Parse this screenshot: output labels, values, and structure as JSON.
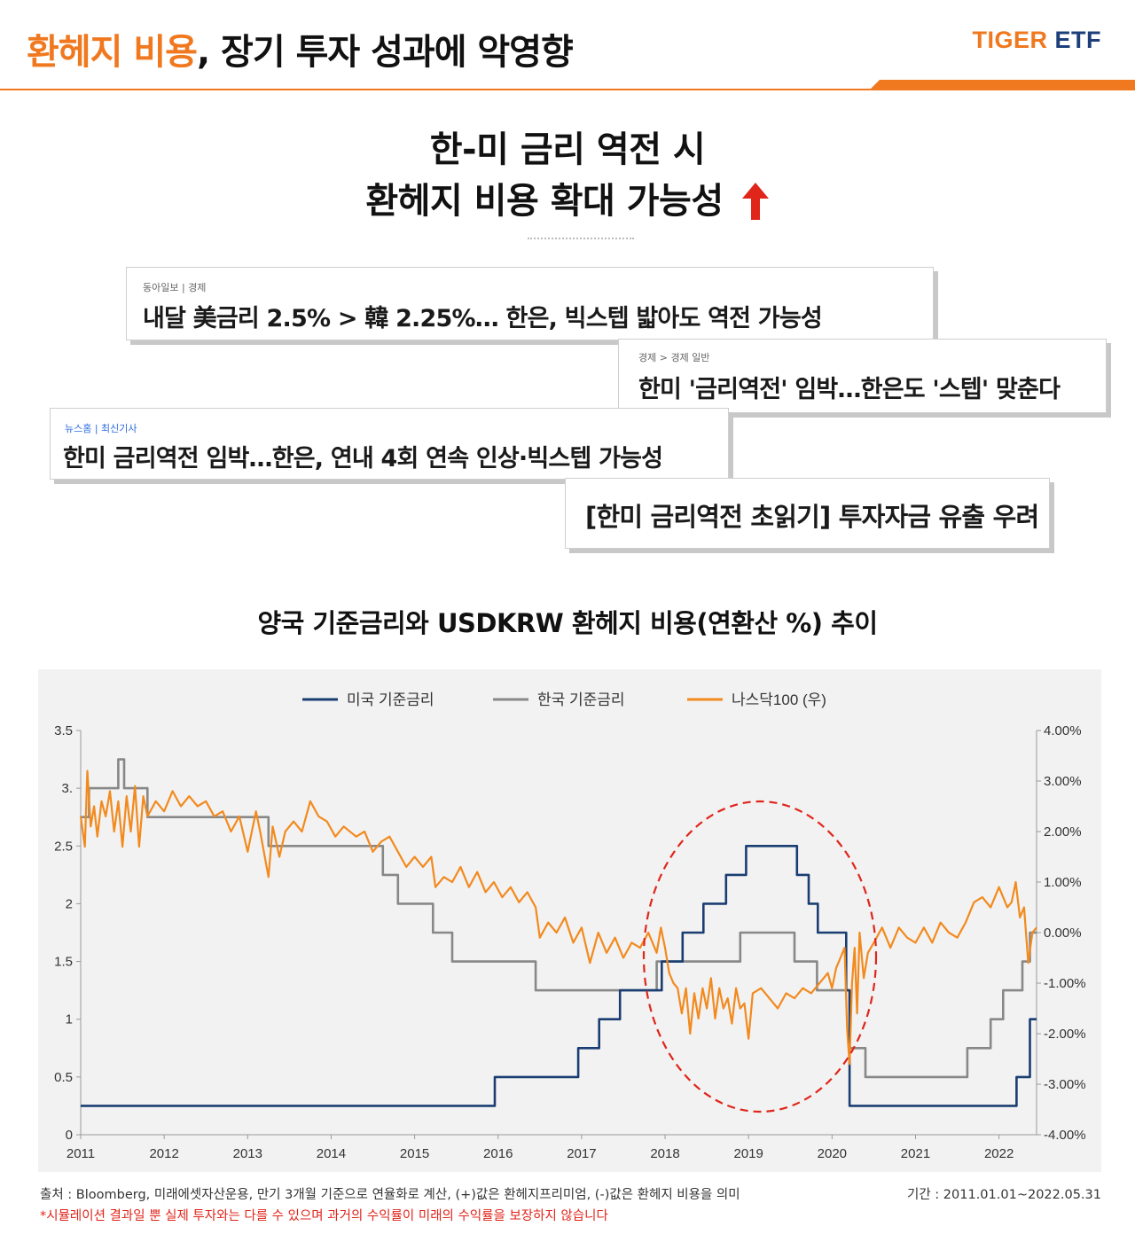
{
  "header": {
    "title_accent": "환헤지 비용",
    "title_rest": ", 장기 투자 성과에 악영향",
    "brand_part1": "TIGER",
    "brand_part2": " ETF",
    "accent_color": "#f0781e",
    "brand_color": "#1c3f7a"
  },
  "headline": {
    "line1": "한-미 금리 역전 시",
    "line2": "환헤지 비용 확대 가능성",
    "arrow_icon": "up-arrow-icon",
    "arrow_color": "#e0251b"
  },
  "news": [
    {
      "source": "동아일보 | 경제",
      "title": "내달 美금리 2.5% > 韓 2.25%… 한은, 빅스텝 밟아도 역전 가능성"
    },
    {
      "source": "경제 > 경제 일반",
      "title": "한미 '금리역전' 임박…한은도 '스텝' 맞춘다"
    },
    {
      "source": "뉴스홈 | 최신기사",
      "title": "한미 금리역전 임박…한은, 연내 4회 연속 인상·빅스텝 가능성"
    },
    {
      "source": "",
      "title": "[한미 금리역전 초읽기] 투자자금 유출 우려"
    }
  ],
  "chart_title": "양국 기준금리와 USDKRW 환헤지 비용(연환산 %) 추이",
  "chart_data": {
    "type": "line",
    "x_ticks": [
      "2011",
      "2012",
      "2013",
      "2014",
      "2015",
      "2016",
      "2017",
      "2018",
      "2019",
      "2020",
      "2021",
      "2022"
    ],
    "xlim": [
      2011.0,
      2022.45
    ],
    "y_left_ticks": [
      "0",
      "0.5",
      "1",
      "1.5",
      "2",
      "2.5",
      "3.",
      "3.5"
    ],
    "ylim_left": [
      0,
      3.5
    ],
    "y_right_ticks": [
      "-4.00%",
      "-3.00%",
      "-2.00%",
      "-1.00%",
      "0.00%",
      "1.00%",
      "2.00%",
      "3.00%",
      "4.00%"
    ],
    "ylim_right": [
      -4,
      4
    ],
    "legend_position": "top-center",
    "annotation": "red dashed ellipse around 2018-2020 rate inversion",
    "series": [
      {
        "name": "미국 기준금리",
        "axis": "left",
        "color": "#1a3e72",
        "step": true,
        "points": [
          [
            2011.0,
            0.25
          ],
          [
            2015.96,
            0.25
          ],
          [
            2015.96,
            0.5
          ],
          [
            2016.96,
            0.5
          ],
          [
            2016.96,
            0.75
          ],
          [
            2017.21,
            0.75
          ],
          [
            2017.21,
            1.0
          ],
          [
            2017.46,
            1.0
          ],
          [
            2017.46,
            1.25
          ],
          [
            2017.96,
            1.25
          ],
          [
            2017.96,
            1.5
          ],
          [
            2018.21,
            1.5
          ],
          [
            2018.21,
            1.75
          ],
          [
            2018.46,
            1.75
          ],
          [
            2018.46,
            2.0
          ],
          [
            2018.73,
            2.0
          ],
          [
            2018.73,
            2.25
          ],
          [
            2018.97,
            2.25
          ],
          [
            2018.97,
            2.5
          ],
          [
            2019.58,
            2.5
          ],
          [
            2019.58,
            2.25
          ],
          [
            2019.72,
            2.25
          ],
          [
            2019.72,
            2.0
          ],
          [
            2019.83,
            2.0
          ],
          [
            2019.83,
            1.75
          ],
          [
            2020.17,
            1.75
          ],
          [
            2020.17,
            1.25
          ],
          [
            2020.21,
            1.25
          ],
          [
            2020.21,
            0.25
          ],
          [
            2022.21,
            0.25
          ],
          [
            2022.21,
            0.5
          ],
          [
            2022.37,
            0.5
          ],
          [
            2022.37,
            1.0
          ],
          [
            2022.45,
            1.0
          ]
        ]
      },
      {
        "name": "한국 기준금리",
        "axis": "left",
        "color": "#888888",
        "step": true,
        "points": [
          [
            2011.0,
            2.75
          ],
          [
            2011.1,
            2.75
          ],
          [
            2011.1,
            3.0
          ],
          [
            2011.45,
            3.0
          ],
          [
            2011.45,
            3.25
          ],
          [
            2011.52,
            3.25
          ],
          [
            2011.52,
            3.0
          ],
          [
            2011.8,
            3.0
          ],
          [
            2011.8,
            2.75
          ],
          [
            2013.25,
            2.75
          ],
          [
            2013.25,
            2.5
          ],
          [
            2014.62,
            2.5
          ],
          [
            2014.62,
            2.25
          ],
          [
            2014.8,
            2.25
          ],
          [
            2014.8,
            2.0
          ],
          [
            2015.22,
            2.0
          ],
          [
            2015.22,
            1.75
          ],
          [
            2015.45,
            1.75
          ],
          [
            2015.45,
            1.5
          ],
          [
            2016.45,
            1.5
          ],
          [
            2016.45,
            1.25
          ],
          [
            2017.9,
            1.25
          ],
          [
            2017.9,
            1.5
          ],
          [
            2018.9,
            1.5
          ],
          [
            2018.9,
            1.75
          ],
          [
            2019.55,
            1.75
          ],
          [
            2019.55,
            1.5
          ],
          [
            2019.82,
            1.5
          ],
          [
            2019.82,
            1.25
          ],
          [
            2020.21,
            1.25
          ],
          [
            2020.21,
            0.75
          ],
          [
            2020.4,
            0.75
          ],
          [
            2020.4,
            0.5
          ],
          [
            2021.62,
            0.5
          ],
          [
            2021.62,
            0.75
          ],
          [
            2021.9,
            0.75
          ],
          [
            2021.9,
            1.0
          ],
          [
            2022.05,
            1.0
          ],
          [
            2022.05,
            1.25
          ],
          [
            2022.28,
            1.25
          ],
          [
            2022.28,
            1.5
          ],
          [
            2022.37,
            1.5
          ],
          [
            2022.37,
            1.75
          ],
          [
            2022.45,
            1.75
          ]
        ]
      },
      {
        "name": "나스닥100 (우)",
        "axis": "right",
        "color": "#f28a1e",
        "points": [
          [
            2011.0,
            2.3
          ],
          [
            2011.05,
            1.7
          ],
          [
            2011.08,
            3.2
          ],
          [
            2011.12,
            2.1
          ],
          [
            2011.16,
            2.5
          ],
          [
            2011.2,
            1.9
          ],
          [
            2011.25,
            2.6
          ],
          [
            2011.3,
            2.3
          ],
          [
            2011.35,
            2.8
          ],
          [
            2011.4,
            2.0
          ],
          [
            2011.45,
            2.6
          ],
          [
            2011.5,
            1.7
          ],
          [
            2011.55,
            2.7
          ],
          [
            2011.6,
            2.0
          ],
          [
            2011.65,
            2.9
          ],
          [
            2011.7,
            1.7
          ],
          [
            2011.75,
            2.7
          ],
          [
            2011.8,
            2.3
          ],
          [
            2011.9,
            2.6
          ],
          [
            2012.0,
            2.4
          ],
          [
            2012.1,
            2.8
          ],
          [
            2012.2,
            2.5
          ],
          [
            2012.3,
            2.7
          ],
          [
            2012.4,
            2.5
          ],
          [
            2012.5,
            2.6
          ],
          [
            2012.6,
            2.3
          ],
          [
            2012.7,
            2.4
          ],
          [
            2012.8,
            2.0
          ],
          [
            2012.9,
            2.3
          ],
          [
            2013.0,
            1.6
          ],
          [
            2013.1,
            2.4
          ],
          [
            2013.15,
            2.0
          ],
          [
            2013.25,
            1.1
          ],
          [
            2013.3,
            2.1
          ],
          [
            2013.38,
            1.5
          ],
          [
            2013.45,
            2.0
          ],
          [
            2013.55,
            2.2
          ],
          [
            2013.65,
            2.0
          ],
          [
            2013.75,
            2.6
          ],
          [
            2013.85,
            2.3
          ],
          [
            2013.95,
            2.2
          ],
          [
            2014.05,
            1.9
          ],
          [
            2014.15,
            2.1
          ],
          [
            2014.3,
            1.9
          ],
          [
            2014.4,
            2.0
          ],
          [
            2014.5,
            1.6
          ],
          [
            2014.6,
            1.8
          ],
          [
            2014.7,
            1.9
          ],
          [
            2014.8,
            1.6
          ],
          [
            2014.9,
            1.3
          ],
          [
            2015.0,
            1.5
          ],
          [
            2015.1,
            1.3
          ],
          [
            2015.2,
            1.5
          ],
          [
            2015.25,
            0.9
          ],
          [
            2015.35,
            1.1
          ],
          [
            2015.45,
            1.0
          ],
          [
            2015.55,
            1.3
          ],
          [
            2015.65,
            0.9
          ],
          [
            2015.75,
            1.2
          ],
          [
            2015.85,
            0.8
          ],
          [
            2015.95,
            1.0
          ],
          [
            2016.05,
            0.7
          ],
          [
            2016.15,
            0.9
          ],
          [
            2016.25,
            0.6
          ],
          [
            2016.35,
            0.8
          ],
          [
            2016.45,
            0.5
          ],
          [
            2016.5,
            -0.1
          ],
          [
            2016.6,
            0.2
          ],
          [
            2016.7,
            0.0
          ],
          [
            2016.8,
            0.3
          ],
          [
            2016.9,
            -0.2
          ],
          [
            2017.0,
            0.1
          ],
          [
            2017.1,
            -0.6
          ],
          [
            2017.2,
            0.0
          ],
          [
            2017.3,
            -0.4
          ],
          [
            2017.4,
            -0.1
          ],
          [
            2017.5,
            -0.5
          ],
          [
            2017.6,
            -0.2
          ],
          [
            2017.7,
            -0.3
          ],
          [
            2017.8,
            0.0
          ],
          [
            2017.9,
            -0.4
          ],
          [
            2017.95,
            0.1
          ],
          [
            2018.0,
            -0.3
          ],
          [
            2018.05,
            -0.8
          ],
          [
            2018.1,
            -1.0
          ],
          [
            2018.15,
            -1.1
          ],
          [
            2018.2,
            -1.6
          ],
          [
            2018.25,
            -1.1
          ],
          [
            2018.3,
            -2.0
          ],
          [
            2018.35,
            -1.2
          ],
          [
            2018.4,
            -1.7
          ],
          [
            2018.45,
            -1.1
          ],
          [
            2018.5,
            -1.5
          ],
          [
            2018.55,
            -0.9
          ],
          [
            2018.6,
            -1.7
          ],
          [
            2018.65,
            -1.1
          ],
          [
            2018.7,
            -1.5
          ],
          [
            2018.75,
            -1.3
          ],
          [
            2018.8,
            -1.8
          ],
          [
            2018.85,
            -1.1
          ],
          [
            2018.9,
            -1.5
          ],
          [
            2018.95,
            -1.4
          ],
          [
            2019.0,
            -2.1
          ],
          [
            2019.05,
            -1.2
          ],
          [
            2019.15,
            -1.1
          ],
          [
            2019.25,
            -1.3
          ],
          [
            2019.35,
            -1.5
          ],
          [
            2019.45,
            -1.2
          ],
          [
            2019.55,
            -1.3
          ],
          [
            2019.65,
            -1.1
          ],
          [
            2019.75,
            -1.2
          ],
          [
            2019.85,
            -1.0
          ],
          [
            2019.95,
            -0.8
          ],
          [
            2020.0,
            -1.1
          ],
          [
            2020.05,
            -0.7
          ],
          [
            2020.1,
            -0.5
          ],
          [
            2020.15,
            -0.3
          ],
          [
            2020.18,
            -1.9
          ],
          [
            2020.21,
            -2.6
          ],
          [
            2020.24,
            -1.0
          ],
          [
            2020.27,
            -0.3
          ],
          [
            2020.3,
            -1.6
          ],
          [
            2020.33,
            0.0
          ],
          [
            2020.38,
            -0.9
          ],
          [
            2020.43,
            -0.4
          ],
          [
            2020.5,
            -0.2
          ],
          [
            2020.6,
            0.1
          ],
          [
            2020.7,
            -0.3
          ],
          [
            2020.8,
            0.1
          ],
          [
            2020.9,
            -0.1
          ],
          [
            2021.0,
            -0.2
          ],
          [
            2021.1,
            0.1
          ],
          [
            2021.2,
            -0.2
          ],
          [
            2021.3,
            0.2
          ],
          [
            2021.4,
            0.0
          ],
          [
            2021.5,
            -0.1
          ],
          [
            2021.6,
            0.2
          ],
          [
            2021.7,
            0.6
          ],
          [
            2021.8,
            0.7
          ],
          [
            2021.9,
            0.5
          ],
          [
            2022.0,
            0.9
          ],
          [
            2022.1,
            0.5
          ],
          [
            2022.15,
            0.6
          ],
          [
            2022.2,
            1.0
          ],
          [
            2022.25,
            0.3
          ],
          [
            2022.3,
            0.5
          ],
          [
            2022.35,
            -0.6
          ],
          [
            2022.4,
            0.0
          ],
          [
            2022.45,
            0.1
          ]
        ]
      }
    ]
  },
  "footer": {
    "source": "출처 : Bloomberg, 미래에셋자산운용, 만기 3개월 기준으로 연율화로 계산, (+)값은 환헤지프리미엄, (-)값은 환헤지 비용을 의미",
    "period": "기간 : 2011.01.01~2022.05.31",
    "disclaimer": "*시뮬레이션 결과일 뿐 실제 투자와는 다를 수 있으며 과거의 수익률이  미래의 수익률을 보장하지 않습니다"
  }
}
